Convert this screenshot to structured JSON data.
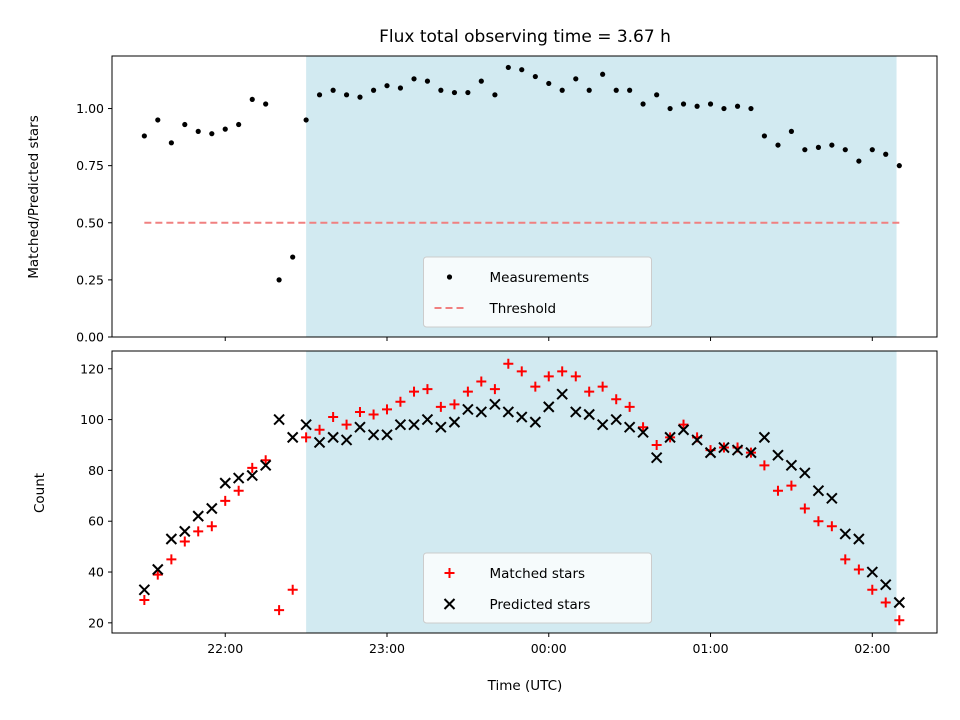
{
  "chart_data": [
    {
      "type": "scatter",
      "title": "Flux total observing time = 3.67 h",
      "ylabel": "Matched/Predicted stars",
      "xlabel": "",
      "ylim": [
        0,
        1.23
      ],
      "yticks": [
        "0.00",
        "0.25",
        "0.50",
        "0.75",
        "1.00"
      ],
      "ytick_values": [
        0,
        0.25,
        0.5,
        0.75,
        1.0
      ],
      "xticks_hours": [
        22,
        23,
        24,
        25,
        26
      ],
      "xlim_hours": [
        21.3,
        26.4
      ],
      "shaded_region_hours": [
        22.5,
        26.15
      ],
      "shade_color": "#add8e6",
      "legend": {
        "placement": "lower center",
        "entries": [
          "Measurements",
          "Threshold"
        ]
      },
      "series": [
        {
          "name": "Measurements",
          "marker": "dot",
          "color": "#000000",
          "x_hours": [
            21.5,
            21.583,
            21.667,
            21.75,
            21.833,
            21.917,
            22.0,
            22.083,
            22.167,
            22.25,
            22.333,
            22.417,
            22.5,
            22.583,
            22.667,
            22.75,
            22.833,
            22.917,
            23.0,
            23.083,
            23.167,
            23.25,
            23.333,
            23.417,
            23.5,
            23.583,
            23.667,
            23.75,
            23.833,
            23.917,
            24.0,
            24.083,
            24.167,
            24.25,
            24.333,
            24.417,
            24.5,
            24.583,
            24.667,
            24.75,
            24.833,
            24.917,
            25.0,
            25.083,
            25.167,
            25.25,
            25.333,
            25.417,
            25.5,
            25.583,
            25.667,
            25.75,
            25.833,
            25.917,
            26.0,
            26.083,
            26.167
          ],
          "y": [
            0.88,
            0.95,
            0.85,
            0.93,
            0.9,
            0.89,
            0.91,
            0.93,
            1.04,
            1.02,
            0.25,
            0.35,
            0.95,
            1.06,
            1.08,
            1.06,
            1.05,
            1.08,
            1.1,
            1.09,
            1.13,
            1.12,
            1.08,
            1.07,
            1.07,
            1.12,
            1.06,
            1.18,
            1.17,
            1.14,
            1.11,
            1.08,
            1.13,
            1.08,
            1.15,
            1.08,
            1.08,
            1.02,
            1.06,
            1.0,
            1.02,
            1.01,
            1.02,
            1.0,
            1.01,
            1.0,
            0.88,
            0.84,
            0.9,
            0.82,
            0.83,
            0.84,
            0.82,
            0.77,
            0.82,
            0.8,
            0.75
          ]
        },
        {
          "name": "Threshold",
          "marker": "dashed-line",
          "color": "#f08080",
          "x_hours": [
            21.5,
            26.167
          ],
          "y": [
            0.5,
            0.5
          ]
        }
      ]
    },
    {
      "type": "scatter",
      "title": "",
      "ylabel": "Count",
      "xlabel": "Time (UTC)",
      "ylim": [
        16,
        127
      ],
      "yticks": [
        "20",
        "40",
        "60",
        "80",
        "100",
        "120"
      ],
      "ytick_values": [
        20,
        40,
        60,
        80,
        100,
        120
      ],
      "xticks": [
        "22:00",
        "23:00",
        "00:00",
        "01:00",
        "02:00"
      ],
      "xticks_hours": [
        22,
        23,
        24,
        25,
        26
      ],
      "xlim_hours": [
        21.3,
        26.4
      ],
      "shaded_region_hours": [
        22.5,
        26.15
      ],
      "shade_color": "#add8e6",
      "legend": {
        "placement": "lower center",
        "entries": [
          "Matched stars",
          "Predicted stars"
        ]
      },
      "series": [
        {
          "name": "Matched stars",
          "marker": "plus",
          "color": "#ff0000",
          "x_hours": [
            21.5,
            21.583,
            21.667,
            21.75,
            21.833,
            21.917,
            22.0,
            22.083,
            22.167,
            22.25,
            22.333,
            22.417,
            22.5,
            22.583,
            22.667,
            22.75,
            22.833,
            22.917,
            23.0,
            23.083,
            23.167,
            23.25,
            23.333,
            23.417,
            23.5,
            23.583,
            23.667,
            23.75,
            23.833,
            23.917,
            24.0,
            24.083,
            24.167,
            24.25,
            24.333,
            24.417,
            24.5,
            24.583,
            24.667,
            24.75,
            24.833,
            24.917,
            25.0,
            25.083,
            25.167,
            25.25,
            25.333,
            25.417,
            25.5,
            25.583,
            25.667,
            25.75,
            25.833,
            25.917,
            26.0,
            26.083,
            26.167
          ],
          "y": [
            29,
            39,
            45,
            52,
            56,
            58,
            68,
            72,
            81,
            84,
            25,
            33,
            93,
            96,
            101,
            98,
            103,
            102,
            104,
            107,
            111,
            112,
            105,
            106,
            111,
            115,
            112,
            122,
            119,
            113,
            117,
            119,
            117,
            111,
            113,
            108,
            105,
            97,
            90,
            93,
            98,
            93,
            88,
            89,
            89,
            87,
            82,
            72,
            74,
            65,
            60,
            58,
            45,
            41,
            33,
            28,
            21
          ]
        },
        {
          "name": "Predicted stars",
          "marker": "x",
          "color": "#000000",
          "x_hours": [
            21.5,
            21.583,
            21.667,
            21.75,
            21.833,
            21.917,
            22.0,
            22.083,
            22.167,
            22.25,
            22.333,
            22.417,
            22.5,
            22.583,
            22.667,
            22.75,
            22.833,
            22.917,
            23.0,
            23.083,
            23.167,
            23.25,
            23.333,
            23.417,
            23.5,
            23.583,
            23.667,
            23.75,
            23.833,
            23.917,
            24.0,
            24.083,
            24.167,
            24.25,
            24.333,
            24.417,
            24.5,
            24.583,
            24.667,
            24.75,
            24.833,
            24.917,
            25.0,
            25.083,
            25.167,
            25.25,
            25.333,
            25.417,
            25.5,
            25.583,
            25.667,
            25.75,
            25.833,
            25.917,
            26.0,
            26.083,
            26.167
          ],
          "y": [
            33,
            41,
            53,
            56,
            62,
            65,
            75,
            77,
            78,
            82,
            100,
            93,
            98,
            91,
            93,
            92,
            97,
            94,
            94,
            98,
            98,
            100,
            97,
            99,
            104,
            103,
            106,
            103,
            101,
            99,
            105,
            110,
            103,
            102,
            98,
            100,
            97,
            95,
            85,
            93,
            96,
            92,
            87,
            89,
            88,
            87,
            93,
            86,
            82,
            79,
            72,
            69,
            55,
            53,
            40,
            35,
            28
          ]
        }
      ]
    }
  ]
}
